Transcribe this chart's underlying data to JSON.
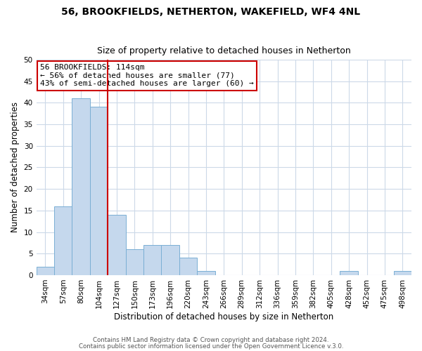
{
  "title": "56, BROOKFIELDS, NETHERTON, WAKEFIELD, WF4 4NL",
  "subtitle": "Size of property relative to detached houses in Netherton",
  "xlabel": "Distribution of detached houses by size in Netherton",
  "ylabel": "Number of detached properties",
  "bar_values": [
    2,
    16,
    41,
    39,
    14,
    6,
    7,
    7,
    4,
    1,
    0,
    0,
    0,
    0,
    0,
    0,
    0,
    1,
    0,
    0,
    1
  ],
  "bin_labels": [
    "34sqm",
    "57sqm",
    "80sqm",
    "104sqm",
    "127sqm",
    "150sqm",
    "173sqm",
    "196sqm",
    "220sqm",
    "243sqm",
    "266sqm",
    "289sqm",
    "312sqm",
    "336sqm",
    "359sqm",
    "382sqm",
    "405sqm",
    "428sqm",
    "452sqm",
    "475sqm",
    "498sqm"
  ],
  "bar_color": "#c5d8ed",
  "bar_edge_color": "#7aafd4",
  "vline_color": "#cc0000",
  "vline_x": 3.5,
  "annotation_box_text": "56 BROOKFIELDS: 114sqm\n← 56% of detached houses are smaller (77)\n43% of semi-detached houses are larger (60) →",
  "annotation_box_edge_color": "#cc0000",
  "annotation_box_facecolor": "#ffffff",
  "ylim": [
    0,
    50
  ],
  "yticks": [
    0,
    5,
    10,
    15,
    20,
    25,
    30,
    35,
    40,
    45,
    50
  ],
  "footer_line1": "Contains HM Land Registry data © Crown copyright and database right 2024.",
  "footer_line2": "Contains public sector information licensed under the Open Government Licence v.3.0.",
  "background_color": "#ffffff",
  "grid_color": "#ccd9e8",
  "title_fontsize": 10,
  "subtitle_fontsize": 9,
  "ylabel_fontsize": 8.5,
  "xlabel_fontsize": 8.5,
  "tick_fontsize": 7.5,
  "annot_fontsize": 8
}
